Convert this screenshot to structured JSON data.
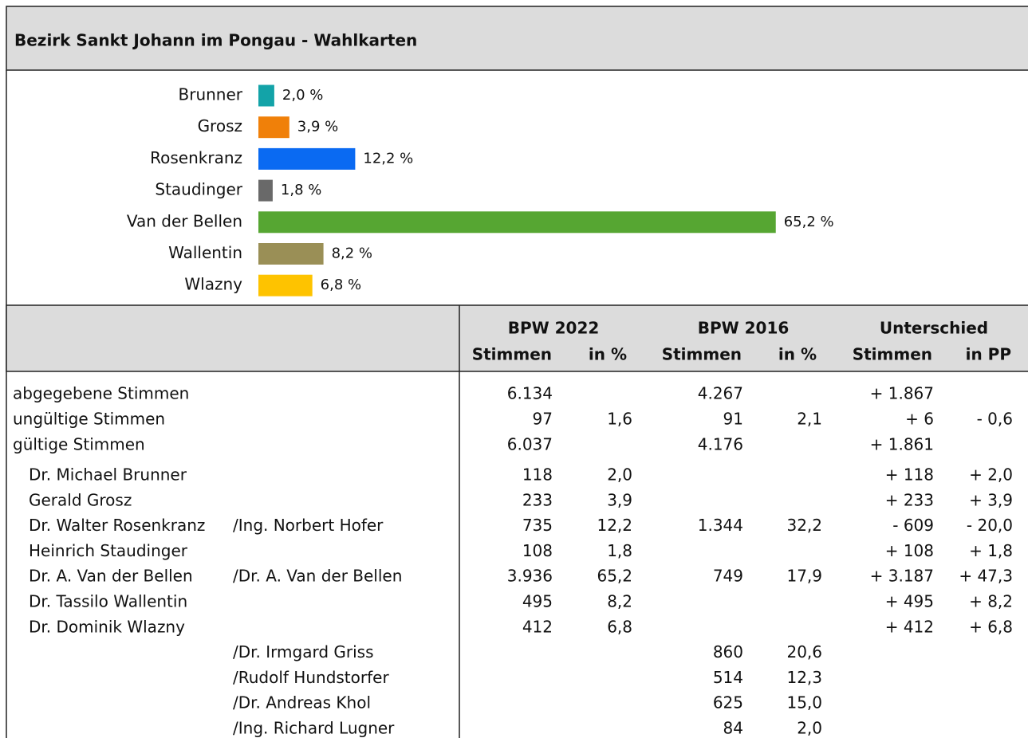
{
  "title": "Bezirk Sankt Johann im Pongau - Wahlkarten",
  "chart_data": {
    "type": "bar",
    "orientation": "horizontal",
    "categories": [
      "Brunner",
      "Grosz",
      "Rosenkranz",
      "Staudinger",
      "Van der Bellen",
      "Wallentin",
      "Wlazny"
    ],
    "values": [
      2.0,
      3.9,
      12.2,
      1.8,
      65.2,
      8.2,
      6.8
    ],
    "value_labels": [
      "2,0 %",
      "3,9 %",
      "12,2 %",
      "1,8 %",
      "65,2 %",
      "8,2 %",
      "6,8 %"
    ],
    "colors": [
      "#13a3a8",
      "#f08009",
      "#0a6af2",
      "#696969",
      "#56a632",
      "#9a8f56",
      "#fec300"
    ]
  },
  "table": {
    "groups": [
      "BPW 2022",
      "BPW 2016",
      "Unterschied"
    ],
    "columns": [
      "Stimmen",
      "in %",
      "Stimmen",
      "in %",
      "Stimmen",
      "in PP"
    ],
    "rows": [
      {
        "name": "abgegebene Stimmen",
        "partner": null,
        "cells": [
          "6.134",
          null,
          "4.267",
          null,
          "+ 1.867",
          null
        ]
      },
      {
        "name": "ungültige Stimmen",
        "partner": null,
        "cells": [
          "97",
          "1,6",
          "91",
          "2,1",
          "+ 6",
          "- 0,6"
        ]
      },
      {
        "name": "gültige Stimmen",
        "partner": null,
        "cells": [
          "6.037",
          null,
          "4.176",
          null,
          "+ 1.861",
          null
        ]
      },
      {
        "name": "Dr. Michael Brunner",
        "partner": null,
        "cells": [
          "118",
          "2,0",
          null,
          null,
          "+ 118",
          "+ 2,0"
        ]
      },
      {
        "name": "Gerald Grosz",
        "partner": null,
        "cells": [
          "233",
          "3,9",
          null,
          null,
          "+ 233",
          "+ 3,9"
        ]
      },
      {
        "name": "Dr. Walter Rosenkranz",
        "partner": "/Ing. Norbert Hofer",
        "cells": [
          "735",
          "12,2",
          "1.344",
          "32,2",
          "- 609",
          "- 20,0"
        ]
      },
      {
        "name": "Heinrich Staudinger",
        "partner": null,
        "cells": [
          "108",
          "1,8",
          null,
          null,
          "+ 108",
          "+ 1,8"
        ]
      },
      {
        "name": "Dr. A. Van der Bellen",
        "partner": "/Dr. A. Van der Bellen",
        "cells": [
          "3.936",
          "65,2",
          "749",
          "17,9",
          "+ 3.187",
          "+ 47,3"
        ]
      },
      {
        "name": "Dr. Tassilo Wallentin",
        "partner": null,
        "cells": [
          "495",
          "8,2",
          null,
          null,
          "+ 495",
          "+ 8,2"
        ]
      },
      {
        "name": "Dr. Dominik Wlazny",
        "partner": null,
        "cells": [
          "412",
          "6,8",
          null,
          null,
          "+ 412",
          "+ 6,8"
        ]
      },
      {
        "name": null,
        "partner": "/Dr. Irmgard Griss",
        "cells": [
          null,
          null,
          "860",
          "20,6",
          null,
          null
        ]
      },
      {
        "name": null,
        "partner": "/Rudolf Hundstorfer",
        "cells": [
          null,
          null,
          "514",
          "12,3",
          null,
          null
        ]
      },
      {
        "name": null,
        "partner": "/Dr. Andreas Khol",
        "cells": [
          null,
          null,
          "625",
          "15,0",
          null,
          null
        ]
      },
      {
        "name": null,
        "partner": "/Ing. Richard Lugner",
        "cells": [
          null,
          null,
          "84",
          "2,0",
          null,
          null
        ]
      }
    ]
  }
}
